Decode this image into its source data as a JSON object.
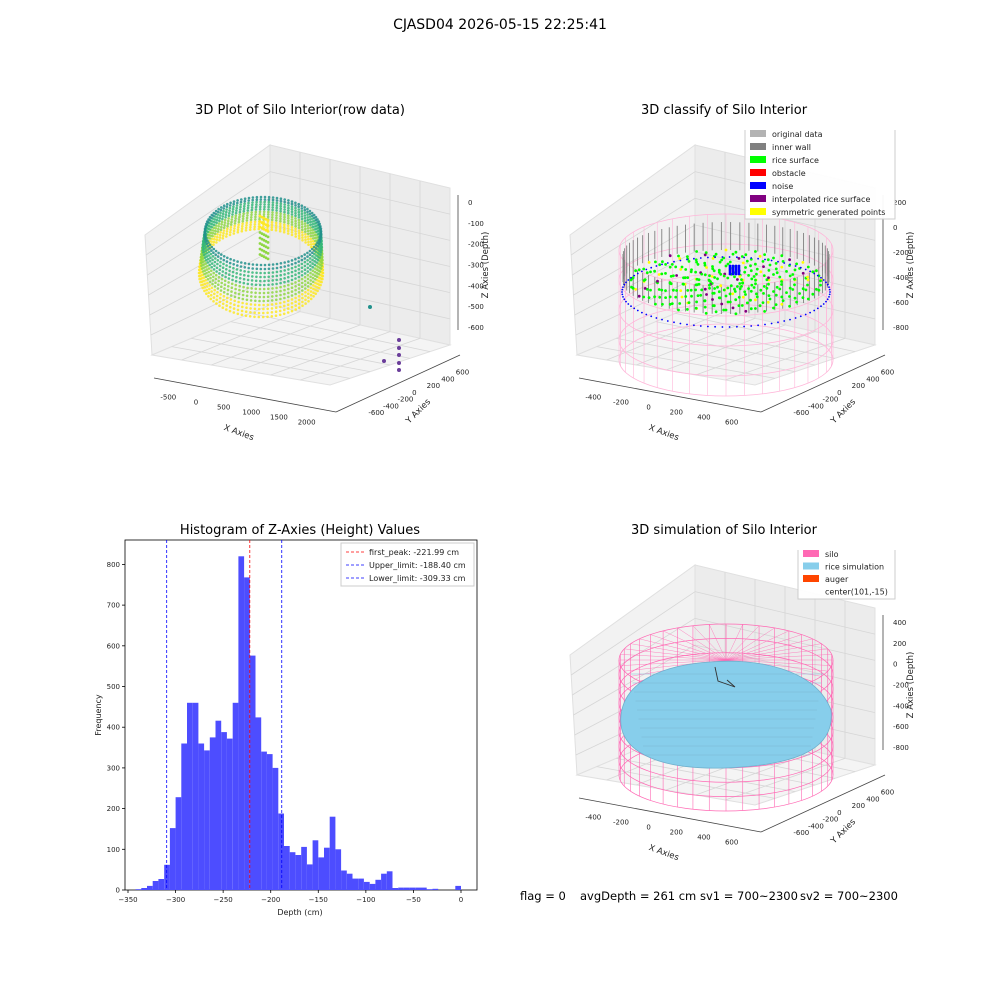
{
  "figure": {
    "suptitle": "CJASD04 2026-05-15 22:25:41",
    "footer": {
      "flag": "flag = 0",
      "avg_depth": "avgDepth = 261 cm",
      "sv1": "sv1 = 700~2300",
      "sv2": "sv2 = 700~2300"
    }
  },
  "chart_data": [
    {
      "type": "scatter",
      "title": "3D Plot of Silo Interior(row data)",
      "xlabel": "X Axies",
      "ylabel": "Y Axies",
      "zlabel": "Z Axies (Depth)",
      "x_ticks": [
        "-500",
        "0",
        "500",
        "1000",
        "1500",
        "2000"
      ],
      "y_ticks": [
        "-600",
        "-400",
        "-200",
        "0",
        "200",
        "400",
        "600"
      ],
      "z_ticks": [
        "0",
        "-100",
        "-200",
        "-300",
        "-400",
        "-500",
        "-600"
      ],
      "colormap": [
        "#fde725",
        "#8fd744",
        "#35b779",
        "#21918c",
        "#31688e",
        "#443a83",
        "#440154"
      ]
    },
    {
      "type": "scatter",
      "title": "3D classify of Silo Interior",
      "xlabel": "X Axies",
      "ylabel": "Y Axies",
      "zlabel": "Z Axies (Depth)",
      "x_ticks": [
        "-400",
        "-200",
        "0",
        "200",
        "400",
        "600"
      ],
      "y_ticks": [
        "-600",
        "-400",
        "-200",
        "0",
        "200",
        "400",
        "600"
      ],
      "z_ticks": [
        "200",
        "0",
        "-200",
        "-400",
        "-600",
        "-800"
      ],
      "z_top_partial": "0",
      "legend": [
        {
          "label": "original data",
          "color": "#b3b3b3"
        },
        {
          "label": "inner wall",
          "color": "#808080"
        },
        {
          "label": "rice surface",
          "color": "#00ff00"
        },
        {
          "label": "obstacle",
          "color": "#ff0000"
        },
        {
          "label": "noise",
          "color": "#0000ff"
        },
        {
          "label": "interpolated rice surface",
          "color": "#800080"
        },
        {
          "label": "symmetric generated points",
          "color": "#ffff00"
        }
      ]
    },
    {
      "type": "bar",
      "title": "Histogram of Z-Axies (Height) Values",
      "xlabel": "Depth (cm)",
      "ylabel": "Frequency",
      "xlim": [
        -350,
        0
      ],
      "ylim": [
        0,
        860
      ],
      "x_ticks": [
        -350,
        -300,
        -250,
        -200,
        -150,
        -100,
        -50,
        0
      ],
      "y_ticks": [
        0,
        100,
        200,
        300,
        400,
        500,
        600,
        700,
        800
      ],
      "bar_color": "#4d4dff",
      "bins": [
        {
          "x0": -342,
          "x1": -336,
          "v": 2
        },
        {
          "x0": -336,
          "x1": -330,
          "v": 5
        },
        {
          "x0": -330,
          "x1": -324,
          "v": 10
        },
        {
          "x0": -324,
          "x1": -318,
          "v": 22
        },
        {
          "x0": -318,
          "x1": -312,
          "v": 27
        },
        {
          "x0": -312,
          "x1": -306,
          "v": 62
        },
        {
          "x0": -306,
          "x1": -300,
          "v": 152
        },
        {
          "x0": -300,
          "x1": -294,
          "v": 228
        },
        {
          "x0": -294,
          "x1": -288,
          "v": 360
        },
        {
          "x0": -288,
          "x1": -282,
          "v": 460
        },
        {
          "x0": -282,
          "x1": -276,
          "v": 460
        },
        {
          "x0": -276,
          "x1": -270,
          "v": 360
        },
        {
          "x0": -270,
          "x1": -264,
          "v": 343
        },
        {
          "x0": -264,
          "x1": -258,
          "v": 375
        },
        {
          "x0": -258,
          "x1": -252,
          "v": 416
        },
        {
          "x0": -252,
          "x1": -246,
          "v": 388
        },
        {
          "x0": -246,
          "x1": -240,
          "v": 372
        },
        {
          "x0": -240,
          "x1": -234,
          "v": 460
        },
        {
          "x0": -234,
          "x1": -228,
          "v": 820
        },
        {
          "x0": -228,
          "x1": -222,
          "v": 768
        },
        {
          "x0": -222,
          "x1": -216,
          "v": 576
        },
        {
          "x0": -216,
          "x1": -210,
          "v": 424
        },
        {
          "x0": -210,
          "x1": -204,
          "v": 340
        },
        {
          "x0": -204,
          "x1": -198,
          "v": 334
        },
        {
          "x0": -198,
          "x1": -192,
          "v": 300
        },
        {
          "x0": -192,
          "x1": -186,
          "v": 188
        },
        {
          "x0": -186,
          "x1": -180,
          "v": 108
        },
        {
          "x0": -180,
          "x1": -174,
          "v": 93
        },
        {
          "x0": -174,
          "x1": -168,
          "v": 86
        },
        {
          "x0": -168,
          "x1": -162,
          "v": 106
        },
        {
          "x0": -162,
          "x1": -156,
          "v": 63
        },
        {
          "x0": -156,
          "x1": -150,
          "v": 122
        },
        {
          "x0": -150,
          "x1": -144,
          "v": 80
        },
        {
          "x0": -144,
          "x1": -138,
          "v": 104
        },
        {
          "x0": -138,
          "x1": -132,
          "v": 180
        },
        {
          "x0": -132,
          "x1": -126,
          "v": 100
        },
        {
          "x0": -126,
          "x1": -120,
          "v": 48
        },
        {
          "x0": -120,
          "x1": -114,
          "v": 40
        },
        {
          "x0": -114,
          "x1": -108,
          "v": 28
        },
        {
          "x0": -108,
          "x1": -102,
          "v": 28
        },
        {
          "x0": -102,
          "x1": -96,
          "v": 20
        },
        {
          "x0": -96,
          "x1": -90,
          "v": 15
        },
        {
          "x0": -90,
          "x1": -84,
          "v": 25
        },
        {
          "x0": -84,
          "x1": -78,
          "v": 40
        },
        {
          "x0": -78,
          "x1": -72,
          "v": 46
        },
        {
          "x0": -72,
          "x1": -66,
          "v": 5
        },
        {
          "x0": -66,
          "x1": -60,
          "v": 6
        },
        {
          "x0": -60,
          "x1": -54,
          "v": 6
        },
        {
          "x0": -54,
          "x1": -48,
          "v": 6
        },
        {
          "x0": -48,
          "x1": -42,
          "v": 6
        },
        {
          "x0": -42,
          "x1": -36,
          "v": 6
        },
        {
          "x0": -36,
          "x1": -30,
          "v": 2
        },
        {
          "x0": -30,
          "x1": -24,
          "v": 3
        },
        {
          "x0": -6,
          "x1": 0,
          "v": 10
        }
      ],
      "vlines": [
        {
          "x": -221.99,
          "label": "first_peak: -221.99 cm",
          "color": "#ff0000"
        },
        {
          "x": -188.4,
          "label": "Upper_limit: -188.40 cm",
          "color": "#0000ff"
        },
        {
          "x": -309.33,
          "label": "Lower_limit: -309.33 cm",
          "color": "#0000ff"
        }
      ]
    },
    {
      "type": "scatter",
      "title": "3D simulation of Silo Interior",
      "xlabel": "X Axies",
      "ylabel": "Y Axies",
      "zlabel": "Z Axies (Depth)",
      "x_ticks": [
        "-400",
        "-200",
        "0",
        "200",
        "400",
        "600"
      ],
      "y_ticks": [
        "-600",
        "-400",
        "-200",
        "0",
        "200",
        "400",
        "600"
      ],
      "z_ticks": [
        "400",
        "200",
        "0",
        "-200",
        "-400",
        "-600",
        "-800"
      ],
      "legend": [
        {
          "label": "silo",
          "color": "#ff69b4"
        },
        {
          "label": "rice simulation",
          "color": "#87ceeb"
        },
        {
          "label": "auger",
          "color": "#ff4500"
        },
        {
          "label": "center(101,-15)",
          "color": ""
        }
      ]
    }
  ]
}
